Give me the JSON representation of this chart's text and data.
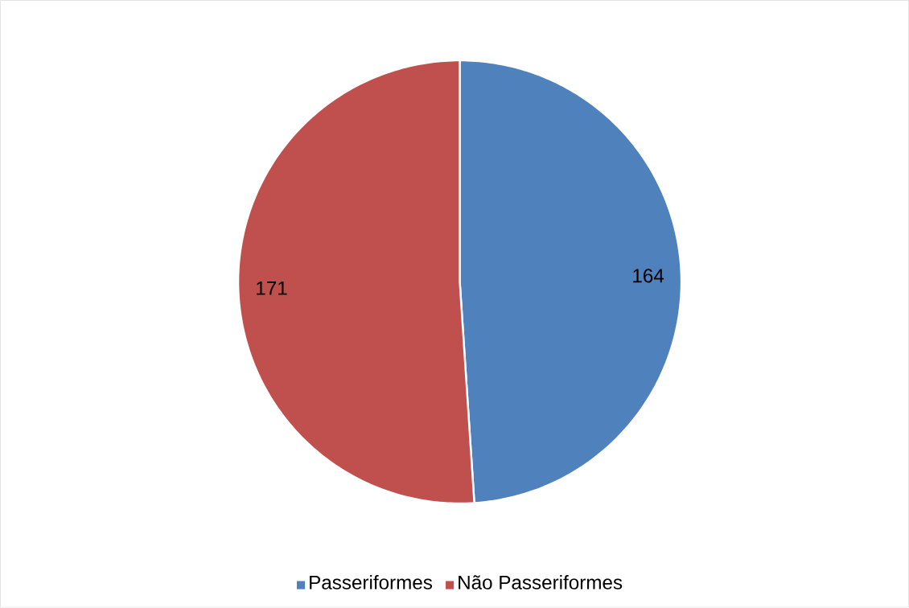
{
  "chart_data": {
    "type": "pie",
    "categories": [
      "Passeriformes",
      "Não Passeriformes"
    ],
    "values": [
      164,
      171
    ],
    "colors": [
      "#4f81bd",
      "#c0504d"
    ],
    "data_labels": true,
    "legend": "bottom"
  }
}
